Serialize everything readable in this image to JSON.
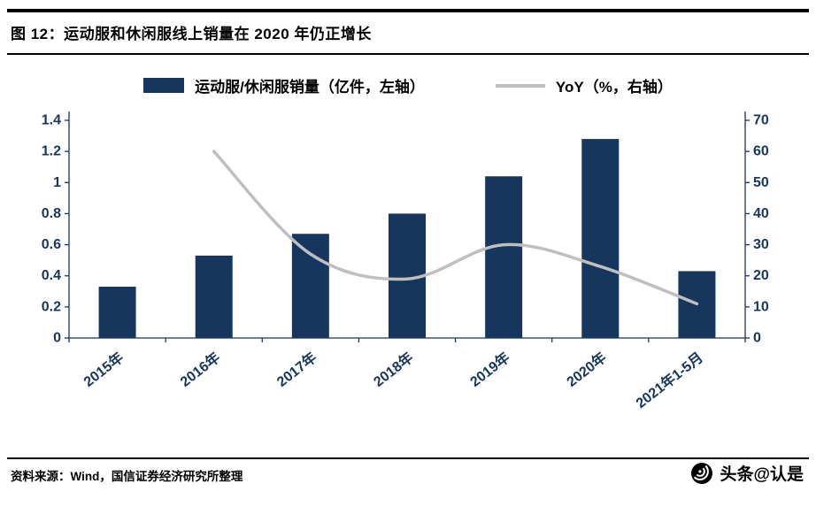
{
  "title": {
    "text": "图  12：运动服和休闲服线上销量在 2020 年仍正增长"
  },
  "legend": {
    "items": [
      {
        "label": "运动服/休闲服销量（亿件，左轴）",
        "type": "bar"
      },
      {
        "label": "YoY（%，右轴）",
        "type": "line"
      }
    ]
  },
  "colors": {
    "bar": "#17365D",
    "line": "#BFBFBF",
    "axis": "#17365D",
    "rule": "#000000"
  },
  "chart_data": {
    "type": "bar",
    "title": "运动服和休闲服线上销量在 2020 年仍正增长",
    "categories": [
      "2015年",
      "2016年",
      "2017年",
      "2018年",
      "2019年",
      "2020年",
      "2021年1-5月"
    ],
    "series": [
      {
        "name": "运动服/休闲服销量（亿件，左轴）",
        "type": "bar",
        "axis": "left",
        "values": [
          0.33,
          0.53,
          0.67,
          0.8,
          1.04,
          1.28,
          0.43
        ]
      },
      {
        "name": "YoY（%，右轴）",
        "type": "line",
        "axis": "right",
        "values": [
          null,
          60,
          27,
          19,
          30,
          23,
          11
        ]
      }
    ],
    "left_axis": {
      "min": 0,
      "max": 1.4,
      "step": 0.2,
      "ticks": [
        "0",
        "0.2",
        "0.4",
        "0.6",
        "0.8",
        "1",
        "1.2",
        "1.4"
      ]
    },
    "right_axis": {
      "min": 0,
      "max": 70,
      "step": 10,
      "ticks": [
        "0",
        "10",
        "20",
        "30",
        "40",
        "50",
        "60",
        "70"
      ]
    },
    "grid": false,
    "legend_position": "top"
  },
  "footer": {
    "source": "资料来源：Wind，国信证券经济研究所整理",
    "watermark": "头条@认是"
  }
}
